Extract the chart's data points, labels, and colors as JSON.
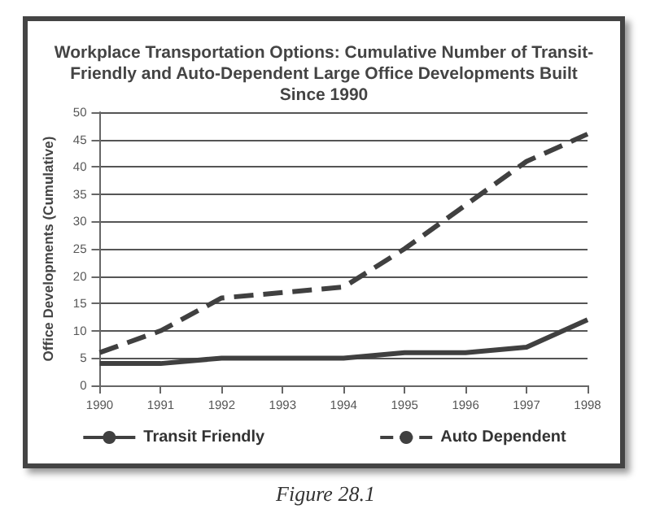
{
  "chart_data": {
    "type": "line",
    "title": "Workplace Transportation Options: Cumulative Number of Transit-\nFriendly and Auto-Dependent Large Office Developments Built\nSince 1990",
    "ylabel": "Office Developments (Cumulative)",
    "categories": [
      "1990",
      "1991",
      "1992",
      "1993",
      "1994",
      "1995",
      "1996",
      "1997",
      "1998"
    ],
    "series": [
      {
        "name": "Transit Friendly",
        "color": "#404040",
        "line_style": "solid",
        "values": [
          4,
          4,
          5,
          5,
          5,
          6,
          6,
          7,
          12
        ]
      },
      {
        "name": "Auto Dependent",
        "color": "#404040",
        "line_style": "dashed",
        "values": [
          6,
          10,
          16,
          17,
          18,
          25,
          33,
          41,
          46
        ]
      }
    ],
    "ylim": [
      0,
      50
    ],
    "yticks": [
      0,
      5,
      10,
      15,
      20,
      25,
      30,
      35,
      40,
      45,
      50
    ],
    "grid": "y",
    "legend": "bottom",
    "marker": "none",
    "annotations": [
      "Figure 28.1"
    ]
  }
}
